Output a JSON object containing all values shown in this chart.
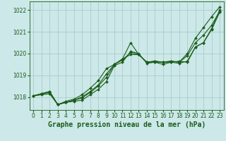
{
  "title": "Graphe pression niveau de la mer (hPa)",
  "bg_color": "#cce8e8",
  "grid_color": "#aacccc",
  "line_color": "#1a5c1a",
  "marker_color": "#1a5c1a",
  "xlim": [
    -0.5,
    23.5
  ],
  "ylim": [
    1017.4,
    1022.4
  ],
  "yticks": [
    1018,
    1019,
    1020,
    1021,
    1022
  ],
  "xticks": [
    0,
    1,
    2,
    3,
    4,
    5,
    6,
    7,
    8,
    9,
    10,
    11,
    12,
    13,
    14,
    15,
    16,
    17,
    18,
    19,
    20,
    21,
    22,
    23
  ],
  "series": [
    [
      1018.05,
      1018.15,
      1018.2,
      1017.65,
      1017.75,
      1017.8,
      1017.85,
      1018.1,
      1018.35,
      1018.7,
      1019.45,
      1019.6,
      1020.1,
      1020.0,
      1019.55,
      1019.6,
      1019.5,
      1019.6,
      1019.55,
      1019.65,
      1020.3,
      1020.5,
      1021.15,
      1022.0
    ],
    [
      1018.05,
      1018.15,
      1018.25,
      1017.65,
      1017.75,
      1017.85,
      1017.95,
      1018.2,
      1018.5,
      1018.9,
      1019.5,
      1019.75,
      1020.5,
      1019.95,
      1019.6,
      1019.65,
      1019.6,
      1019.65,
      1019.6,
      1020.0,
      1020.7,
      1021.2,
      1021.7,
      1022.15
    ],
    [
      1018.05,
      1018.1,
      1018.15,
      1017.65,
      1017.75,
      1017.85,
      1018.0,
      1018.25,
      1018.55,
      1019.05,
      1019.5,
      1019.7,
      1020.05,
      1019.95,
      1019.6,
      1019.6,
      1019.6,
      1019.6,
      1019.65,
      1019.6,
      1020.3,
      1020.5,
      1021.1,
      1021.9
    ],
    [
      1018.05,
      1018.15,
      1018.25,
      1017.65,
      1017.8,
      1017.9,
      1018.1,
      1018.4,
      1018.75,
      1019.3,
      1019.5,
      1019.75,
      1019.95,
      1019.95,
      1019.6,
      1019.65,
      1019.6,
      1019.65,
      1019.6,
      1019.9,
      1020.5,
      1020.85,
      1021.3,
      1021.95
    ]
  ],
  "tick_fontsize": 5.5,
  "title_fontsize": 7.0,
  "title_fontweight": "bold",
  "title_fontfamily": "monospace",
  "linewidth": 0.8,
  "markersize": 2.0
}
